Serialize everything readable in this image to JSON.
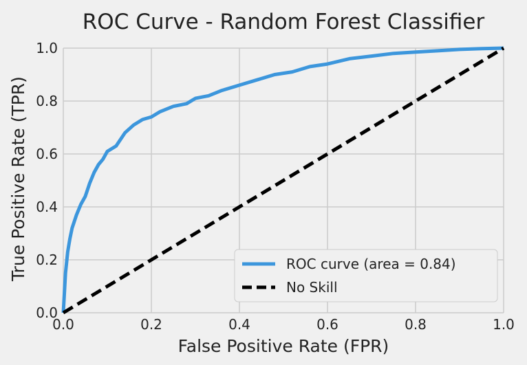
{
  "chart_data": {
    "type": "line",
    "title": "ROC Curve - Random Forest Classifier",
    "xlabel": "False Positive Rate (FPR)",
    "ylabel": "True Positive Rate (TPR)",
    "xlim": [
      0.0,
      1.0
    ],
    "ylim": [
      0.0,
      1.0
    ],
    "xticks": [
      "0.0",
      "0.2",
      "0.4",
      "0.6",
      "0.8",
      "1.0"
    ],
    "yticks": [
      "0.0",
      "0.2",
      "0.4",
      "0.6",
      "0.8",
      "1.0"
    ],
    "grid": true,
    "legend_position": "lower-right",
    "series": [
      {
        "name": "ROC curve (area = 0.84)",
        "color": "#3c96dc",
        "style": "solid",
        "x": [
          0.0,
          0.005,
          0.01,
          0.015,
          0.02,
          0.03,
          0.04,
          0.05,
          0.06,
          0.07,
          0.08,
          0.09,
          0.1,
          0.12,
          0.14,
          0.16,
          0.18,
          0.2,
          0.22,
          0.25,
          0.28,
          0.3,
          0.33,
          0.36,
          0.4,
          0.44,
          0.48,
          0.52,
          0.56,
          0.6,
          0.65,
          0.7,
          0.75,
          0.8,
          0.85,
          0.9,
          0.95,
          1.0
        ],
        "y": [
          0.0,
          0.15,
          0.23,
          0.28,
          0.32,
          0.37,
          0.41,
          0.44,
          0.49,
          0.53,
          0.56,
          0.58,
          0.61,
          0.63,
          0.68,
          0.71,
          0.73,
          0.74,
          0.76,
          0.78,
          0.79,
          0.81,
          0.82,
          0.84,
          0.86,
          0.88,
          0.9,
          0.91,
          0.93,
          0.94,
          0.96,
          0.97,
          0.98,
          0.985,
          0.99,
          0.995,
          0.998,
          1.0
        ]
      },
      {
        "name": "No Skill",
        "color": "#000000",
        "style": "dashed",
        "x": [
          0.0,
          1.0
        ],
        "y": [
          0.0,
          1.0
        ]
      }
    ]
  }
}
